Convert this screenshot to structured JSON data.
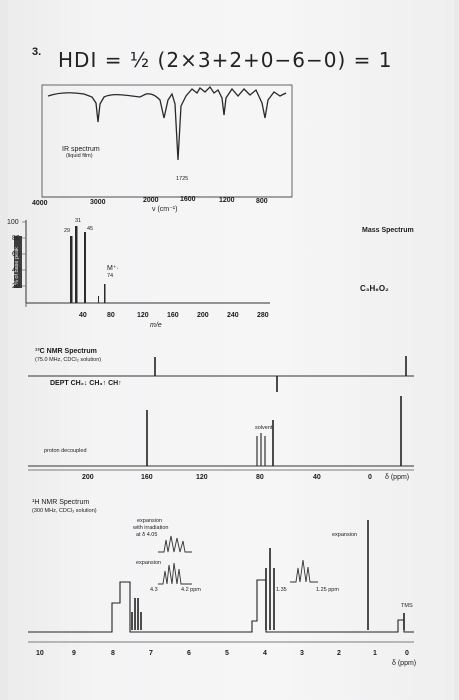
{
  "header": {
    "problem_number": "3.",
    "hdi_equation": "HDI = ½ (2×3+2+0−6−0) = 1"
  },
  "ir": {
    "label_line1": "IR spectrum",
    "label_line2": "(liquid film)",
    "peak_label": "1725",
    "xlabel": "ν (cm⁻¹)",
    "xticks": [
      "4000",
      "3000",
      "2000",
      "1600",
      "1200",
      "800"
    ]
  },
  "ms": {
    "title": "Mass Spectrum",
    "ylabel": "% of base peak",
    "yticks": [
      "100",
      "80",
      "60",
      "40",
      "20"
    ],
    "xticks": [
      "40",
      "80",
      "120",
      "160",
      "200",
      "240",
      "280"
    ],
    "xlabel": "m/e",
    "peak_labels": [
      "29",
      "31",
      "45"
    ],
    "molecular_ion": "M⁺·",
    "molecular_ion_mass": "74",
    "formula": "C₃H₆O₂"
  },
  "c13": {
    "title": "¹³C NMR Spectrum",
    "subtitle": "(75.0 MHz, CDCl₃ solution)",
    "dept_label": "DEPT  CH₂↓ CH₃↑ CH↑",
    "decoupled_label": "proton decoupled",
    "solvent_label": "solvent",
    "xticks": [
      "200",
      "160",
      "120",
      "80",
      "40",
      "0"
    ],
    "xunit": "δ (ppm)"
  },
  "h1": {
    "title": "¹H NMR Spectrum",
    "subtitle": "(300 MHz, CDCl₃ solution)",
    "expansion_irr_line1": "expansion",
    "expansion_irr_line2": "with irradiation",
    "expansion_irr_line3": "at δ 4.05",
    "expansion_label": "expansion",
    "expansion_right_label": "expansion",
    "exp_tick_left": "4.3",
    "exp_tick_right": "4.2 ppm",
    "exp_tick_r1": "1.35",
    "exp_tick_r2": "1.25 ppm",
    "tms_label": "TMS",
    "xticks": [
      "10",
      "9",
      "8",
      "7",
      "6",
      "5",
      "4",
      "3",
      "2",
      "1",
      "0"
    ],
    "xunit": "δ (ppm)"
  }
}
